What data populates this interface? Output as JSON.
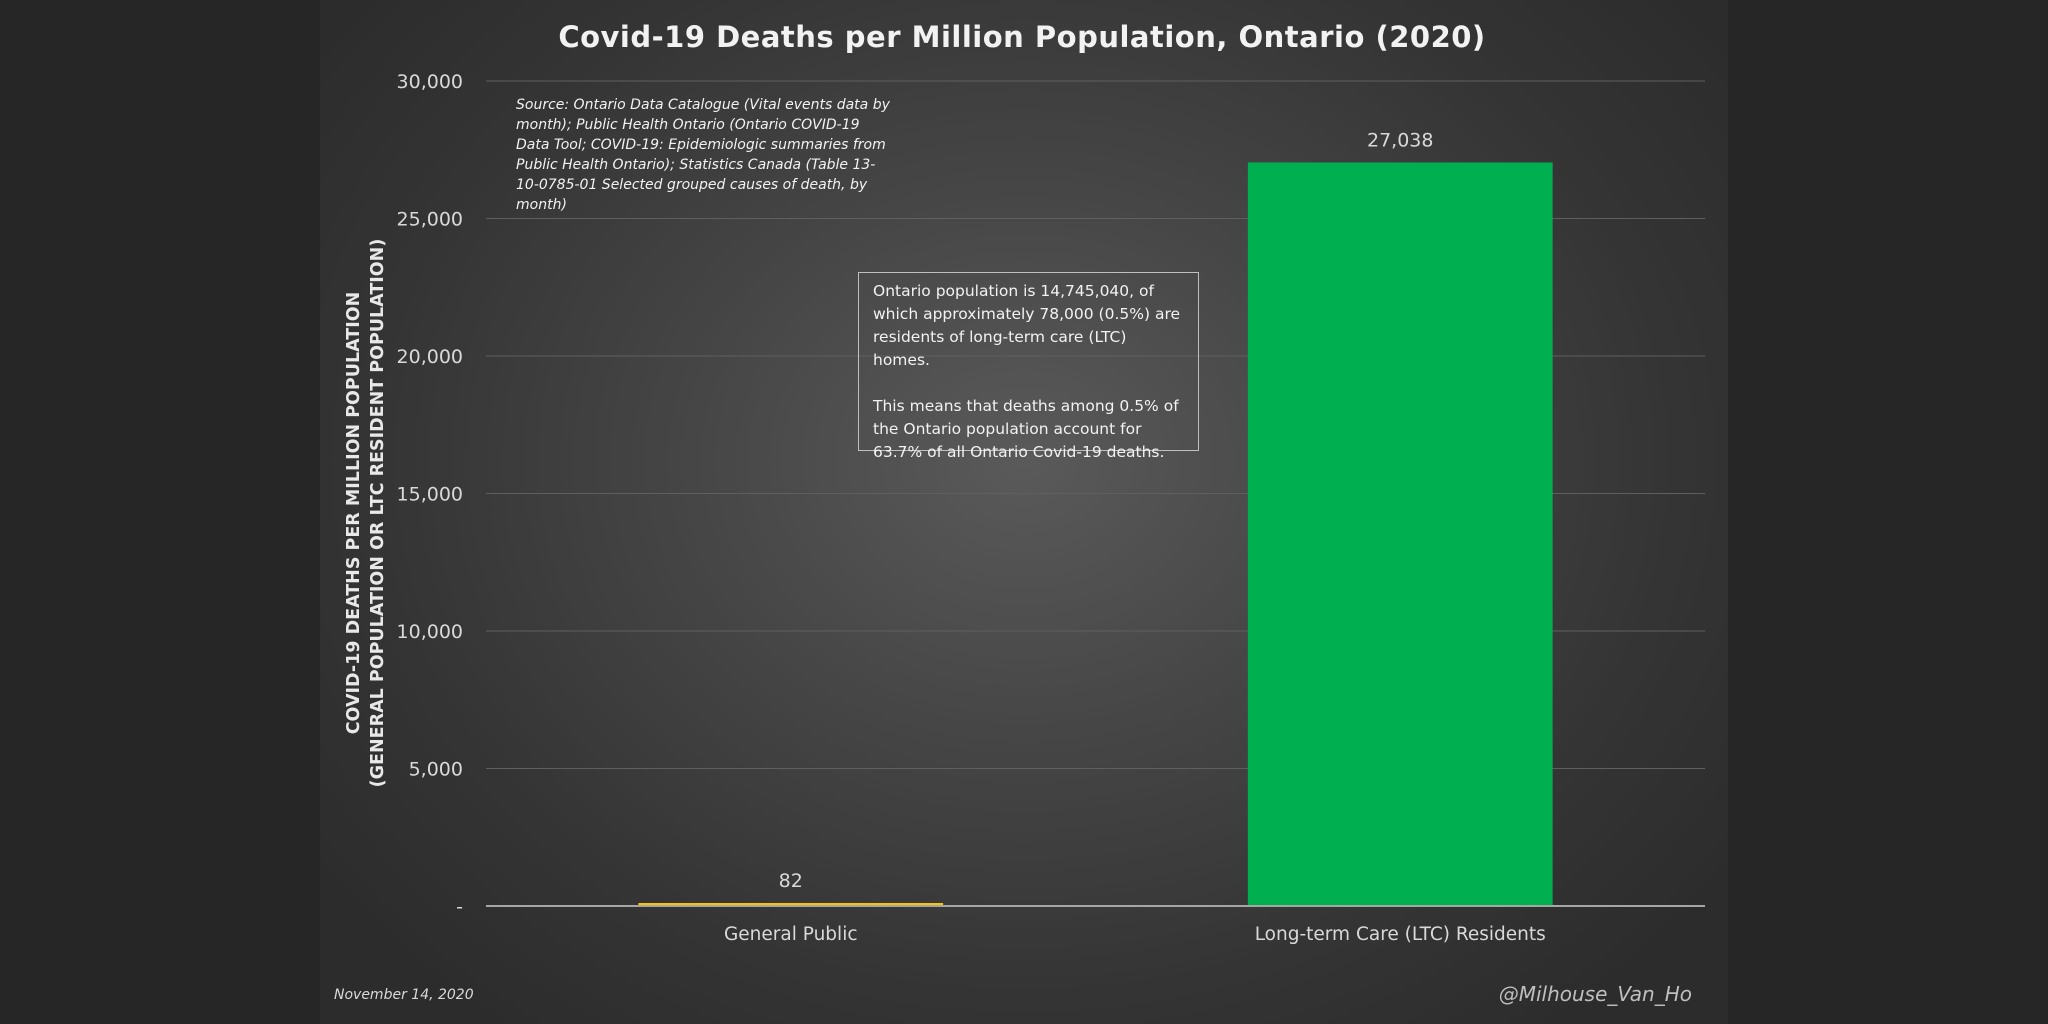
{
  "chart_data": {
    "type": "bar",
    "title": "Covid-19 Deaths per Million Population, Ontario (2020)",
    "ylabel_lines": [
      "COVID-19 DEATHS PER MILLION POPULATION",
      "(GENERAL POPULATION OR LTC RESIDENT POPULATION)"
    ],
    "xlabel": "",
    "categories": [
      "General Public",
      "Long-term Care (LTC) Residents"
    ],
    "values": [
      82,
      27038
    ],
    "data_labels": [
      "82",
      "27,038"
    ],
    "bar_colors": [
      "#ffc000",
      "#00b050"
    ],
    "ylim": [
      0,
      30000
    ],
    "y_ticks": [
      {
        "value": 0,
        "label": "-"
      },
      {
        "value": 5000,
        "label": "5,000"
      },
      {
        "value": 10000,
        "label": "10,000"
      },
      {
        "value": 15000,
        "label": "15,000"
      },
      {
        "value": 20000,
        "label": "20,000"
      },
      {
        "value": 25000,
        "label": "25,000"
      },
      {
        "value": 30000,
        "label": "30,000"
      }
    ],
    "grid": true,
    "legend": "none",
    "annotations": {
      "source": "Source: Ontario Data Catalogue (Vital events data by month); Public Health Ontario (Ontario COVID-19 Data Tool; COVID-19: Epidemiologic summaries from Public Health Ontario); Statistics Canada (Table 13-10-0785-01 Selected grouped causes of death, by month)",
      "info_paragraph_1": "Ontario population is 14,745,040, of which approximately 78,000 (0.5%) are residents of long-term care (LTC) homes.",
      "info_paragraph_2": "This means that deaths among 0.5% of the Ontario population account for 63.7% of all Ontario Covid-19 deaths."
    }
  },
  "footer": {
    "date": "November 14, 2020",
    "handle": "@Milhouse_Van_Ho"
  },
  "colors": {
    "background": "#262626",
    "gridline": "#5f5f5f",
    "axis_line": "#a6a6a6",
    "text": "#d9d9d9"
  }
}
